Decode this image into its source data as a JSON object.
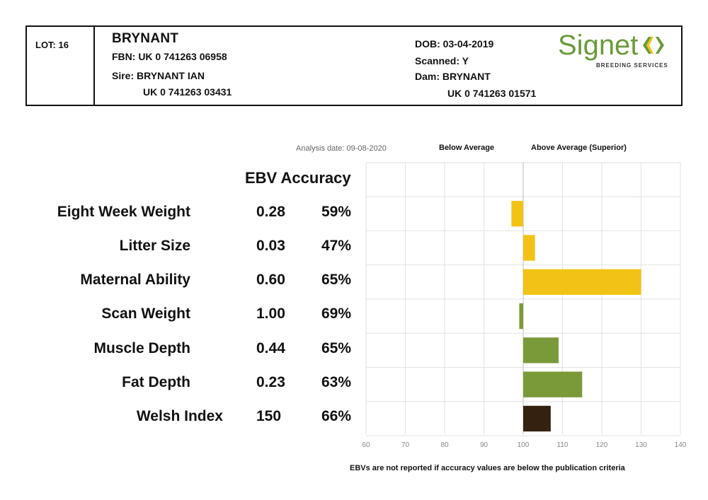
{
  "header": {
    "lot": "LOT: 16",
    "name": "BRYNANT",
    "fbn": "FBN: UK 0 741263 06958",
    "sire": "Sire: BRYNANT IAN",
    "sire_id": "UK 0 741263 03431",
    "dob": "DOB: 03-04-2019",
    "scanned": "Scanned: Y",
    "dam": "Dam: BRYNANT",
    "dam_id": "UK 0 741263 01571"
  },
  "logo": {
    "word": "Signet",
    "sub": "BREEDING SERVICES",
    "colors": {
      "green": "#6a9a3a",
      "yellow": "#f2c314"
    }
  },
  "analysis_date": "Analysis date: 09-08-2020",
  "legend": {
    "below": "Below Average",
    "above": "Above Average (Superior)"
  },
  "table": {
    "heading": "EBV Accuracy"
  },
  "traits": [
    {
      "name": "Eight Week Weight",
      "ebv": "0.28",
      "accuracy": "59%"
    },
    {
      "name": "Litter Size",
      "ebv": "0.03",
      "accuracy": "47%"
    },
    {
      "name": "Maternal Ability",
      "ebv": "0.60",
      "accuracy": "65%"
    },
    {
      "name": "Scan Weight",
      "ebv": "1.00",
      "accuracy": "69%"
    },
    {
      "name": "Muscle Depth",
      "ebv": "0.44",
      "accuracy": "65%"
    },
    {
      "name": "Fat Depth",
      "ebv": "0.23",
      "accuracy": "63%"
    },
    {
      "name": "Welsh Index",
      "ebv": "150",
      "accuracy": "66%"
    }
  ],
  "chart_data": {
    "type": "bar",
    "orientation": "horizontal",
    "baseline": 100,
    "categories": [
      "Eight Week Weight",
      "Litter Size",
      "Maternal Ability",
      "Scan Weight",
      "Muscle Depth",
      "Fat Depth",
      "Welsh Index"
    ],
    "values": [
      97,
      103,
      130,
      99,
      109,
      115,
      107
    ],
    "colors": [
      "#f2c314",
      "#f2c314",
      "#f2c314",
      "#7a9a3a",
      "#7a9a3a",
      "#7a9a3a",
      "#35210f"
    ],
    "xlim": [
      60,
      140
    ],
    "xticks": [
      "60",
      "70",
      "80",
      "90",
      "100",
      "110",
      "120",
      "130",
      "140"
    ],
    "grid": true
  },
  "footnote": "EBVs are not reported if accuracy values are below the publication criteria"
}
